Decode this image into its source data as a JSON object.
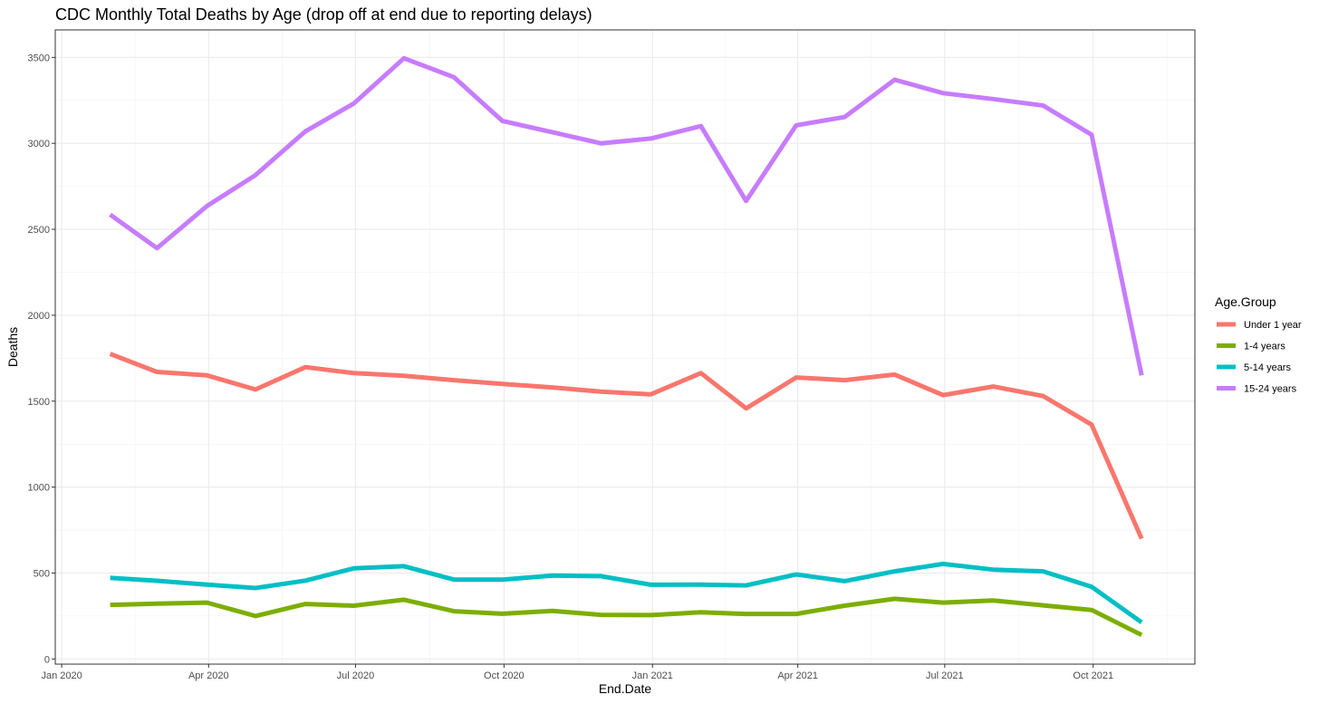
{
  "chart_data": {
    "type": "line",
    "title": "CDC Monthly Total Deaths by Age (drop off at end due to reporting delays)",
    "xlabel": "End.Date",
    "ylabel": "Deaths",
    "x": [
      "2020-01-31",
      "2020-02-29",
      "2020-03-31",
      "2020-04-30",
      "2020-05-31",
      "2020-06-30",
      "2020-07-31",
      "2020-08-31",
      "2020-09-30",
      "2020-10-31",
      "2020-11-30",
      "2020-12-31",
      "2021-01-31",
      "2021-02-28",
      "2021-03-31",
      "2021-04-30",
      "2021-05-31",
      "2021-06-30",
      "2021-07-31",
      "2021-08-31",
      "2021-09-30",
      "2021-10-31"
    ],
    "xlim": [
      "2019-12-28",
      "2021-12-03"
    ],
    "ylim": [
      -30,
      3660
    ],
    "x_ticks": [
      {
        "date": "2020-01-01",
        "label": "Jan 2020"
      },
      {
        "date": "2020-04-01",
        "label": "Apr 2020"
      },
      {
        "date": "2020-07-01",
        "label": "Jul 2020"
      },
      {
        "date": "2020-10-01",
        "label": "Oct 2020"
      },
      {
        "date": "2021-01-01",
        "label": "Jan 2021"
      },
      {
        "date": "2021-04-01",
        "label": "Apr 2021"
      },
      {
        "date": "2021-07-01",
        "label": "Jul 2021"
      },
      {
        "date": "2021-10-01",
        "label": "Oct 2021"
      }
    ],
    "y_ticks": [
      0,
      500,
      1000,
      1500,
      2000,
      2500,
      3000,
      3500
    ],
    "y_tick_labels": [
      "0",
      "500",
      "1000",
      "1500",
      "2000",
      "2500",
      "3000",
      "3500"
    ],
    "grid": true,
    "legend_position": "right",
    "legend_title": "Age.Group",
    "series": [
      {
        "name": "Under 1 year",
        "color": "#F8766D",
        "values": [
          1775,
          1670,
          1650,
          1568,
          1698,
          1663,
          1648,
          1622,
          1600,
          1580,
          1555,
          1540,
          1663,
          1458,
          1638,
          1622,
          1655,
          1535,
          1585,
          1530,
          1363,
          700
        ]
      },
      {
        "name": "1-4 years",
        "color": "#7CAE00",
        "values": [
          315,
          322,
          328,
          250,
          320,
          310,
          345,
          278,
          263,
          280,
          257,
          255,
          272,
          262,
          262,
          310,
          350,
          328,
          340,
          312,
          285,
          140
        ]
      },
      {
        "name": "5-14 years",
        "color": "#00BFC4",
        "values": [
          472,
          455,
          433,
          413,
          456,
          527,
          540,
          462,
          462,
          485,
          482,
          432,
          433,
          428,
          492,
          453,
          510,
          553,
          520,
          510,
          420,
          213
        ]
      },
      {
        "name": "15-24 years",
        "color": "#C77CFF",
        "values": [
          2585,
          2390,
          2635,
          2815,
          3070,
          3232,
          3495,
          3385,
          3130,
          3065,
          3000,
          3028,
          3100,
          2665,
          3105,
          3153,
          3370,
          3292,
          3258,
          3220,
          3050,
          1650
        ]
      }
    ]
  }
}
